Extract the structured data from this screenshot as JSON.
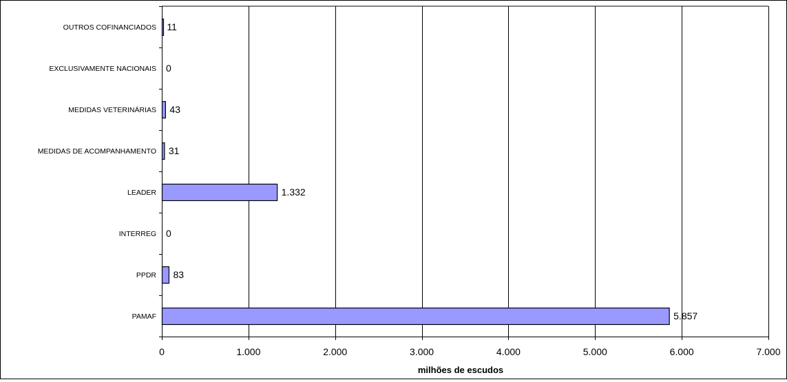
{
  "chart_data": {
    "type": "bar",
    "orientation": "horizontal",
    "categories": [
      "PAMAF",
      "PPDR",
      "INTERREG",
      "LEADER",
      "MEDIDAS DE ACOMPANHAMENTO",
      "MEDIDAS VETERINÁRIAS",
      "EXCLUSIVAMENTE NACIONAIS",
      "OUTROS COFINANCIADOS"
    ],
    "values": [
      5857,
      83,
      0,
      1332,
      31,
      43,
      0,
      11
    ],
    "data_labels": [
      "5.857",
      "83",
      "0",
      "1.332",
      "31",
      "43",
      "0",
      "11"
    ],
    "xlabel": "milhões de escudos",
    "ylabel": "",
    "title": "",
    "xlim": [
      0,
      7000
    ],
    "x_ticks": [
      0,
      1000,
      2000,
      3000,
      4000,
      5000,
      6000,
      7000
    ],
    "x_tick_labels": [
      "0",
      "1.000",
      "2.000",
      "3.000",
      "4.000",
      "5.000",
      "6.000",
      "7.000"
    ],
    "grid": "vertical",
    "legend": "none",
    "bar_color": "#9999ff",
    "bar_edge_color": "#000000"
  }
}
